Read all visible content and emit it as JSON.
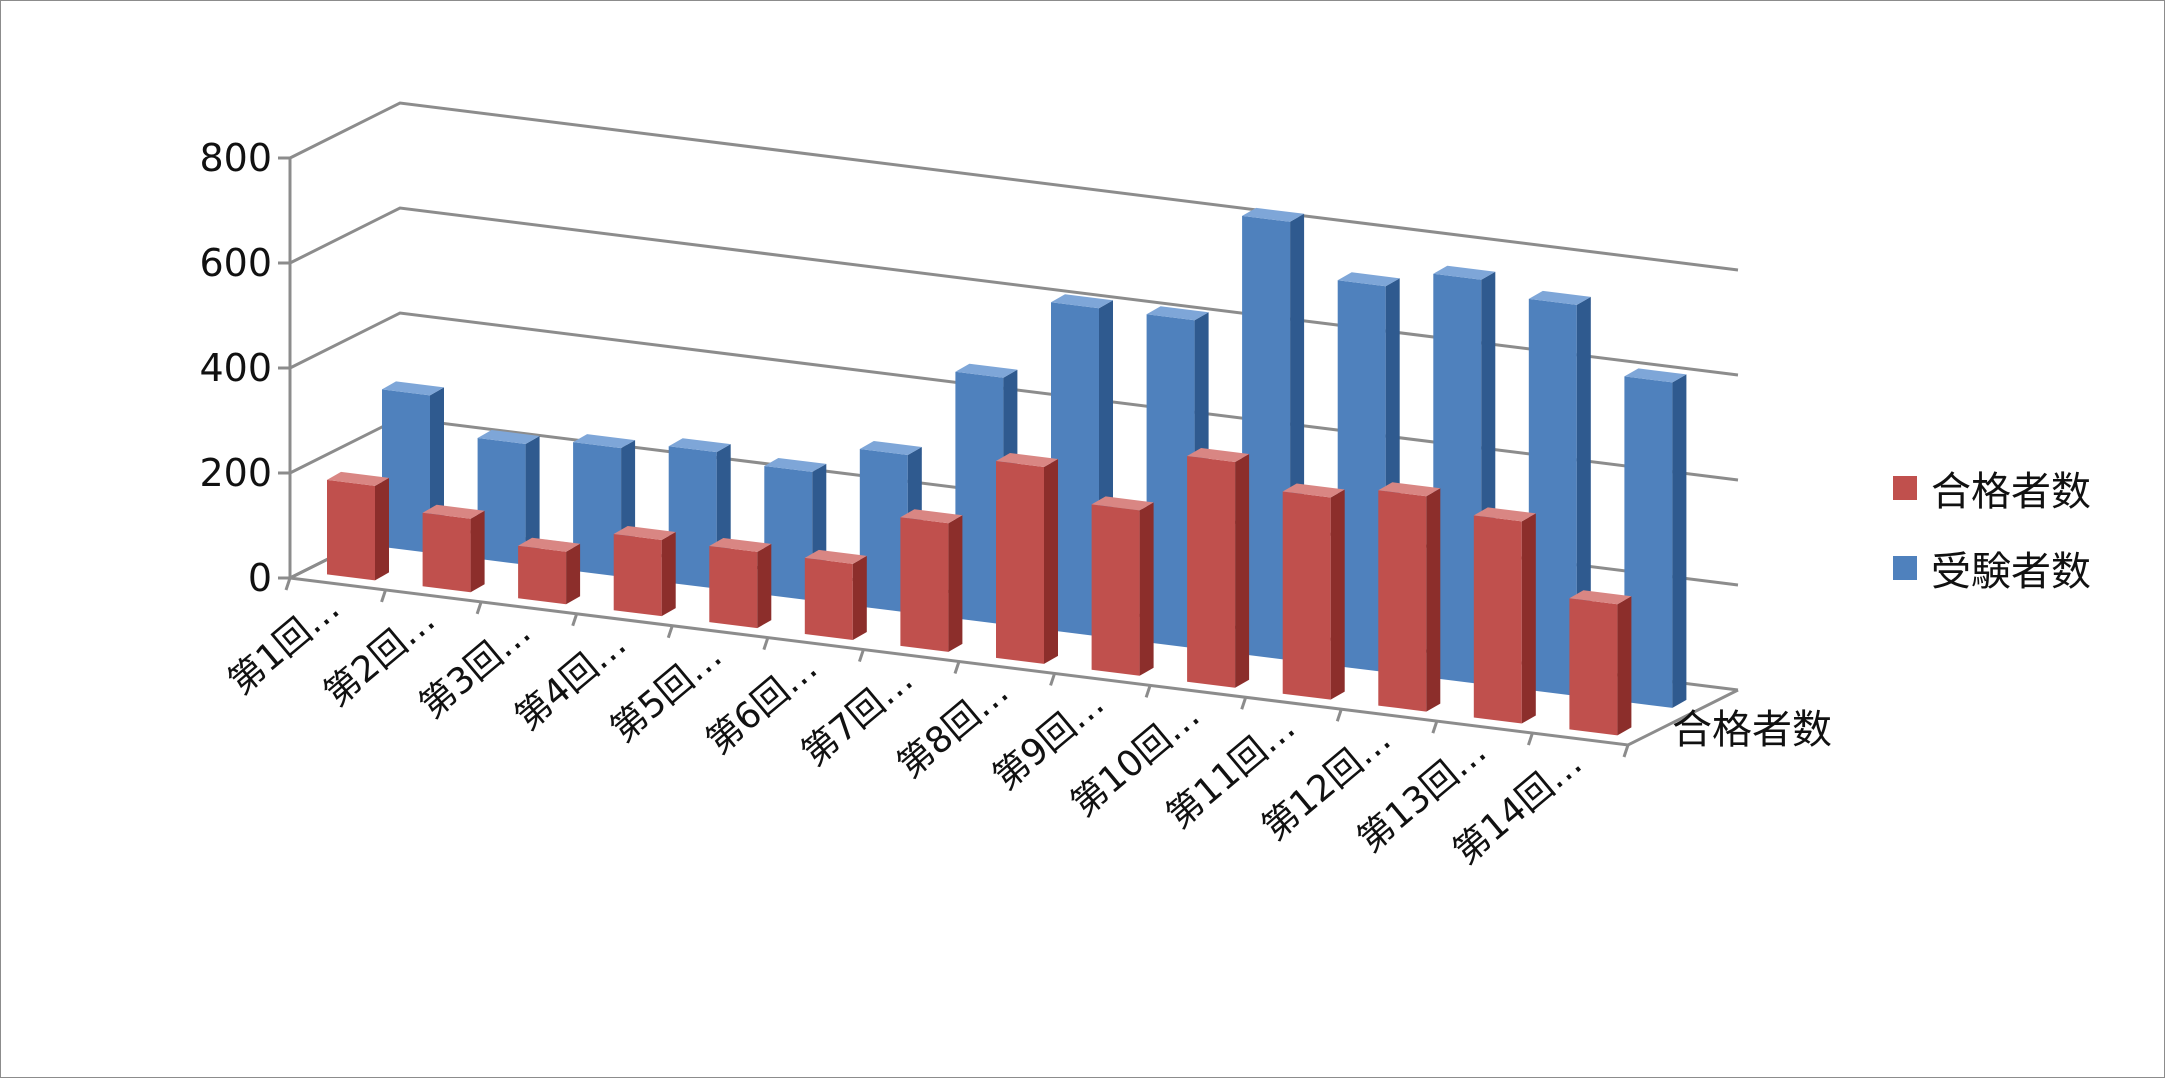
{
  "chart_data": {
    "type": "bar",
    "subtype": "3d-clustered-depth",
    "title": "",
    "categories": [
      "第1回…",
      "第2回…",
      "第3回…",
      "第4回…",
      "第5回…",
      "第6回…",
      "第7回…",
      "第8回…",
      "第9回…",
      "第10回…",
      "第11回…",
      "第12回…",
      "第13回…",
      "第14回…"
    ],
    "series": [
      {
        "name": "合格者数",
        "values": [
          180,
          140,
          100,
          145,
          145,
          145,
          245,
          375,
          315,
          430,
          385,
          410,
          385,
          250
        ]
      },
      {
        "name": "受験者数",
        "values": [
          300,
          230,
          245,
          260,
          245,
          300,
          470,
          625,
          625,
          835,
          735,
          770,
          745,
          620
        ]
      }
    ],
    "yticks": [
      "0",
      "200",
      "400",
      "600",
      "800"
    ],
    "ylim": [
      0,
      800
    ],
    "depth_axis_label": "合格者数",
    "grid": true,
    "legend_position": "right",
    "colors": {
      "series_1_front": "#c0504d",
      "series_1_side": "#8c2e2b",
      "series_1_top": "#d98683",
      "series_2_front": "#4f81bd",
      "series_2_side": "#2f5a8f",
      "series_2_top": "#7ea6d8",
      "gridline": "#8c8c8c"
    }
  },
  "legend": {
    "items": [
      {
        "label": "合格者数",
        "color": "#c0504d"
      },
      {
        "label": "受験者数",
        "color": "#4f81bd"
      }
    ]
  }
}
